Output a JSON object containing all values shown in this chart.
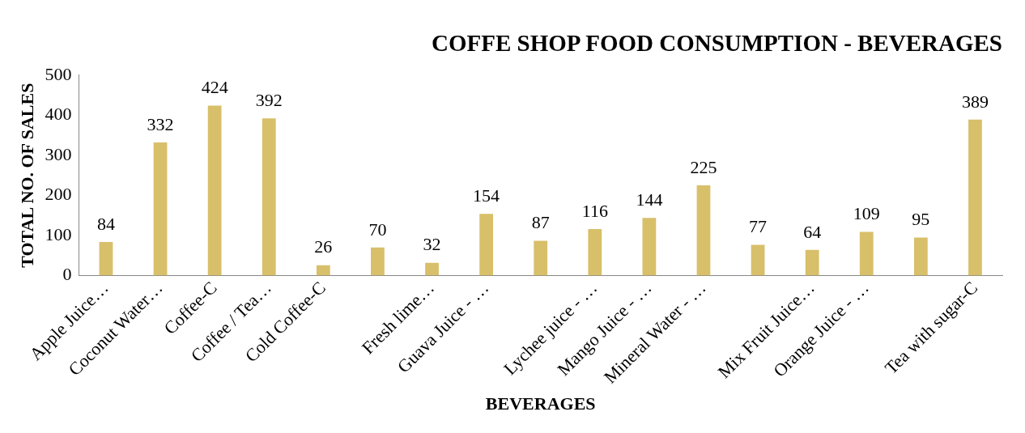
{
  "chart_data": {
    "type": "bar",
    "title": "COFFE SHOP FOOD CONSUMPTION - BEVERAGES",
    "xlabel": "BEVERAGES",
    "ylabel": "TOTAL NO. OF SALES",
    "categories": [
      "Apple Juice…",
      "Coconut Water…",
      "Coffee-C",
      "Coffee / Tea…",
      "Cold Coffee-C",
      null,
      "Fresh lime…",
      "Guava Juice - …",
      null,
      "Lychee juice - …",
      "Mango Juice - …",
      "Mineral Water - …",
      null,
      "Mix Fruit Juice…",
      "Orange Juice - …",
      null,
      "Tea with sugar-C"
    ],
    "values": [
      84,
      332,
      424,
      392,
      26,
      70,
      32,
      154,
      87,
      116,
      144,
      225,
      77,
      64,
      109,
      95,
      389
    ],
    "color": "#d8bf6a",
    "ylim": [
      0,
      500
    ],
    "yticks": [
      0,
      100,
      200,
      300,
      400,
      500
    ],
    "grid": false,
    "data_labels": true
  }
}
